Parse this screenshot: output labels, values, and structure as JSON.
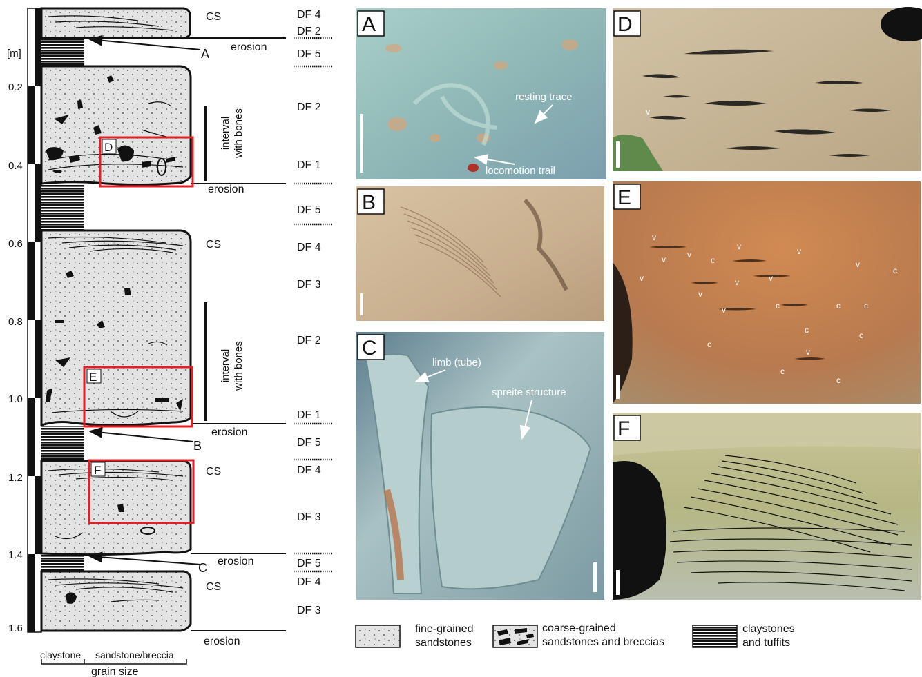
{
  "column": {
    "unit_label": "[m]",
    "ticks": [
      "0.2",
      "0.4",
      "0.6",
      "0.8",
      "1.0",
      "1.2",
      "1.4",
      "1.6"
    ],
    "grain_size_left": "claystone",
    "grain_size_right": "sandstone/breccia",
    "grain_size_caption": "grain size",
    "cs_labels": [
      "CS",
      "CS",
      "CS",
      "CS"
    ],
    "erosion_labels": [
      "erosion",
      "erosion",
      "erosion",
      "erosion",
      "erosion"
    ],
    "interval_labels": [
      "interval\nwith bones",
      "interval\nwith bones"
    ],
    "arrow_letters": [
      "A",
      "B",
      "C"
    ],
    "box_letters": [
      "D",
      "E",
      "F"
    ],
    "df_labels": [
      "DF 4",
      "DF 2",
      "DF 5",
      "DF 2",
      "DF 1",
      "DF 5",
      "DF 4",
      "DF 3",
      "DF 2",
      "DF 1",
      "DF 5",
      "DF 4",
      "DF 3",
      "DF 5",
      "DF 4",
      "DF 3"
    ]
  },
  "panels": {
    "letters": [
      "A",
      "B",
      "C",
      "D",
      "E",
      "F"
    ],
    "a_annotations": [
      "resting trace",
      "locomotion trail"
    ],
    "c_annotations": [
      "limb (tube)",
      "spreite structure"
    ],
    "d_marks": [
      "v"
    ],
    "e_v_marks": [
      "v",
      "v",
      "v",
      "v",
      "v",
      "v",
      "v",
      "v",
      "v",
      "v",
      "v",
      "v"
    ],
    "e_c_marks": [
      "c",
      "c",
      "c",
      "c",
      "c",
      "c",
      "c",
      "c",
      "c",
      "c",
      "c",
      "c"
    ]
  },
  "legend": {
    "fine": "fine-grained\nsandstones",
    "coarse": "coarse-grained\nsandstones and breccias",
    "clay": "claystones\nand tuffits"
  },
  "colors": {
    "sand_fill": "#e3e3e3",
    "highlight_box": "#e31e24",
    "photo_a": "#8fb8b6",
    "photo_b": "#c9b08f",
    "photo_c": "#a9c2c4",
    "photo_d": "#c6b497",
    "photo_e": "#b87a4f",
    "photo_f": "#b9b98c"
  }
}
